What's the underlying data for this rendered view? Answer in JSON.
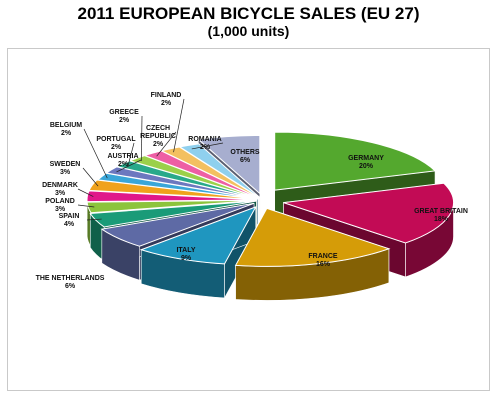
{
  "title_line1": "2011 EUROPEAN BICYCLE SALES (EU 27)",
  "title_line2": "(1,000 units)",
  "chart_data": {
    "type": "pie",
    "style": "3d-exploded",
    "title": "2011 EUROPEAN BICYCLE SALES (EU 27)",
    "subtitle": "(1,000 units)",
    "slices": [
      {
        "name": "GERMANY",
        "label": "20%",
        "value": 20,
        "color": "#54a82e"
      },
      {
        "name": "GREAT BRITAIN",
        "label": "18%",
        "value": 18,
        "color": "#c20b55"
      },
      {
        "name": "FRANCE",
        "label": "16%",
        "value": 16,
        "color": "#d59c08"
      },
      {
        "name": "ITALY",
        "label": "9%",
        "value": 9,
        "color": "#1f96bf"
      },
      {
        "name": "THE NETHERLANDS",
        "label": "6%",
        "value": 6,
        "color": "#5e6aa5"
      },
      {
        "name": "SPAIN",
        "label": "4%",
        "value": 4,
        "color": "#1a9b78"
      },
      {
        "name": "POLAND",
        "label": "3%",
        "value": 3,
        "color": "#8cc43c"
      },
      {
        "name": "DENMARK",
        "label": "3%",
        "value": 3,
        "color": "#e0188a"
      },
      {
        "name": "SWEDEN",
        "label": "3%",
        "value": 3,
        "color": "#f0a21c"
      },
      {
        "name": "BELGIUM",
        "label": "2%",
        "value": 2,
        "color": "#3aa6d8"
      },
      {
        "name": "AUSTRIA",
        "label": "2%",
        "value": 2,
        "color": "#6c78bf"
      },
      {
        "name": "PORTUGAL",
        "label": "2%",
        "value": 2,
        "color": "#28a98a"
      },
      {
        "name": "GREECE",
        "label": "2%",
        "value": 2,
        "color": "#9bd04a"
      },
      {
        "name": "CZECH REPUBLIC",
        "label": "2%",
        "value": 2,
        "color": "#ee5ea4"
      },
      {
        "name": "FINLAND",
        "label": "2%",
        "value": 2,
        "color": "#f3c060"
      },
      {
        "name": "ROMANIA",
        "label": "2%",
        "value": 2,
        "color": "#8fd0ee"
      },
      {
        "name": "OTHERS",
        "label": "6%",
        "value": 6,
        "color": "#a7aecf"
      }
    ]
  }
}
